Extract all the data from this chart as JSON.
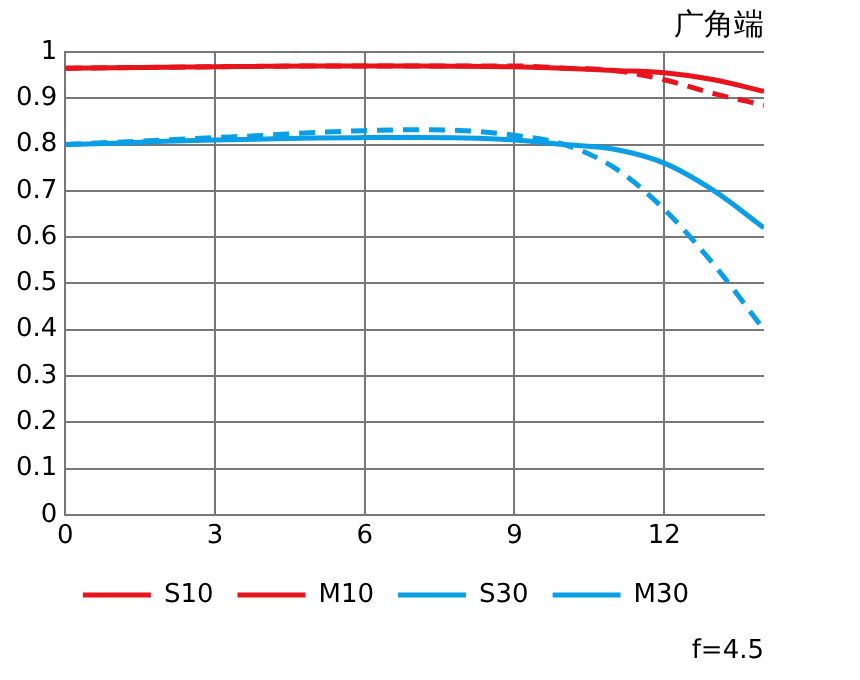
{
  "chart_data": {
    "type": "line",
    "title": "广角端",
    "x": [
      0,
      1,
      2,
      3,
      4,
      5,
      6,
      7,
      8,
      9,
      10,
      11,
      12,
      13,
      14
    ],
    "series": [
      {
        "name": "S10",
        "color": "#e8141c",
        "line_style": "solid",
        "values": [
          0.965,
          0.966,
          0.967,
          0.968,
          0.969,
          0.97,
          0.97,
          0.97,
          0.969,
          0.968,
          0.965,
          0.96,
          0.955,
          0.94,
          0.915
        ]
      },
      {
        "name": "M10",
        "color": "#e8141c",
        "line_style": "dashed",
        "values": [
          0.965,
          0.966,
          0.967,
          0.968,
          0.969,
          0.97,
          0.97,
          0.97,
          0.97,
          0.97,
          0.965,
          0.96,
          0.94,
          0.91,
          0.885
        ]
      },
      {
        "name": "S30",
        "color": "#0a9ee6",
        "line_style": "solid",
        "values": [
          0.8,
          0.803,
          0.807,
          0.81,
          0.812,
          0.814,
          0.815,
          0.815,
          0.814,
          0.81,
          0.8,
          0.79,
          0.76,
          0.7,
          0.62
        ]
      },
      {
        "name": "M30",
        "color": "#0a9ee6",
        "line_style": "dashed",
        "values": [
          0.8,
          0.805,
          0.81,
          0.815,
          0.82,
          0.826,
          0.83,
          0.832,
          0.83,
          0.82,
          0.8,
          0.75,
          0.66,
          0.54,
          0.4
        ]
      }
    ],
    "xlim": [
      0,
      14
    ],
    "xticks": [
      0,
      3,
      6,
      9,
      12
    ],
    "ylim": [
      0,
      1
    ],
    "yticks": [
      0,
      0.1,
      0.2,
      0.3,
      0.4,
      0.5,
      0.6,
      0.7,
      0.8,
      0.9,
      1
    ],
    "grid": true,
    "legend": "bottom",
    "marker": "none",
    "annotations": [
      "f=4.5"
    ]
  }
}
